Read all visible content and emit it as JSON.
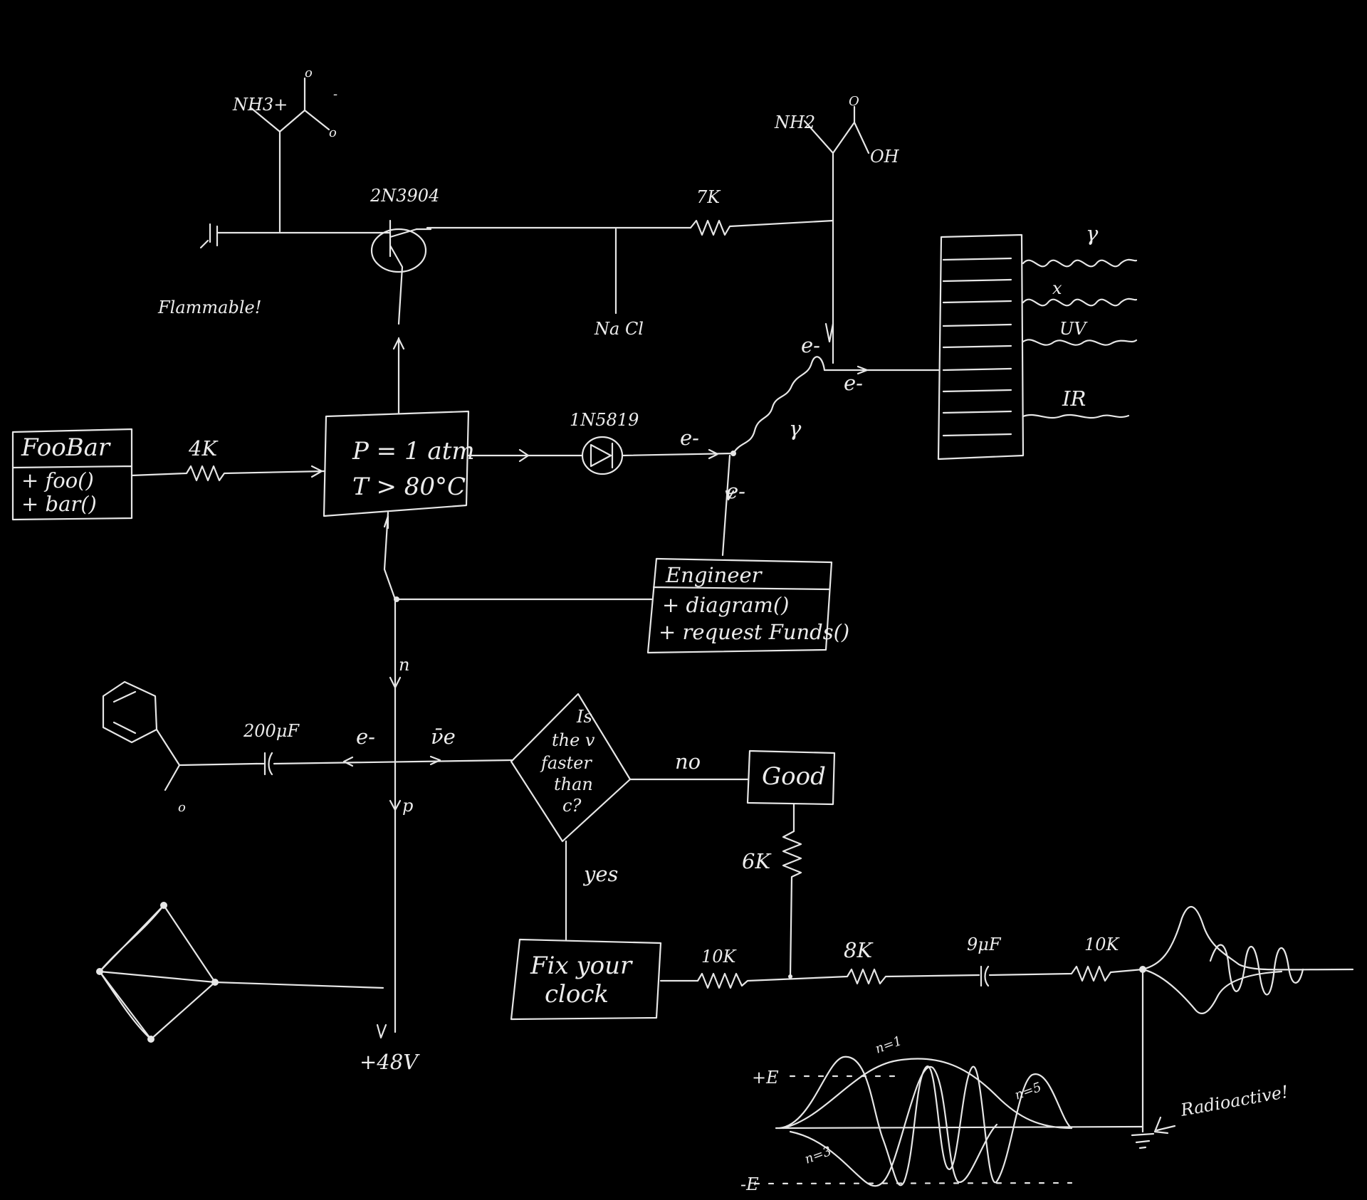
{
  "colors": {
    "background": "#000000",
    "ink": "#e6e6e6"
  },
  "labels": {
    "nh3plus": "NH3+",
    "amino_o_top": "o",
    "amino_minus": "-",
    "amino_o_side": "o",
    "flammable": "Flammable!",
    "transistor": "2N3904",
    "r_top": "7K",
    "nacl": "Na Cl",
    "nh2": "NH2",
    "o_top": "O",
    "oh": "OH",
    "gamma_top": "γ",
    "xray": "x",
    "uv": "UV",
    "ir": "IR",
    "e_minus_1": "e-",
    "e_minus_2": "e-",
    "e_minus_3": "e-",
    "e_minus_4": "e-",
    "gamma_mid": "γ",
    "foobar_title": "FooBar",
    "foobar_m1": "+ foo()",
    "foobar_m2": "+ bar()",
    "r_4k": "4K",
    "cond_p": "P = 1 atm",
    "cond_t": "T > 80°C",
    "diode": "1N5819",
    "engineer_title": "Engineer",
    "engineer_m1": "+ diagram()",
    "engineer_m2": "+ request Funds()",
    "n_label": "n",
    "p_label": "p",
    "cap_200": "200μF",
    "e_minus_5": "e-",
    "nu_e": "ν̄e",
    "decision_1": "Is",
    "decision_2": "the v",
    "decision_3": "faster",
    "decision_4": "than",
    "decision_5": "c?",
    "no_label": "no",
    "yes_label": "yes",
    "good": "Good",
    "r_6k": "6K",
    "fix_1": "Fix your",
    "fix_2": "clock",
    "r_10k_a": "10K",
    "r_8k": "8K",
    "cap_9": "9μF",
    "r_10k_b": "10K",
    "aldehyde_o": "o",
    "v48": "+48V",
    "plus_e": "+E",
    "minus_e": "-E",
    "n1": "n=1",
    "n3": "n=3",
    "n5": "n=5",
    "radioactive": "Radioactive!"
  }
}
